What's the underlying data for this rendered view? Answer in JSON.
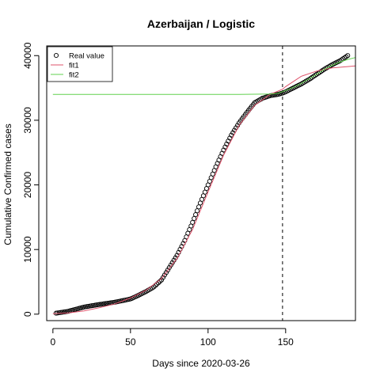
{
  "chart_data": {
    "type": "scatter",
    "title": "Azerbaijan / Logistic",
    "xlabel": "Days since 2020-03-26",
    "ylabel": "Cumulative Confirmed cases",
    "xlim": [
      -4,
      195
    ],
    "ylim": [
      -1000,
      41500
    ],
    "x_ticks": [
      0,
      50,
      100,
      150
    ],
    "y_ticks": [
      0,
      10000,
      20000,
      30000,
      40000
    ],
    "x_tick_labels": [
      "0",
      "50",
      "100",
      "150"
    ],
    "y_tick_labels": [
      "0",
      "10000",
      "20000",
      "30000",
      "40000"
    ],
    "vline_x": 148,
    "grid": false,
    "legend_position": "top-left",
    "legend": [
      "Real value",
      "fit1",
      "fit2"
    ],
    "colors": {
      "real": "#000000",
      "fit1": "#DF536B",
      "fit2": "#61D04F",
      "vline": "#000000"
    },
    "series": [
      {
        "name": "Real value",
        "style": "points",
        "x": [
          2,
          10,
          20,
          30,
          40,
          50,
          55,
          60,
          65,
          70,
          75,
          80,
          85,
          90,
          95,
          100,
          105,
          110,
          115,
          120,
          125,
          130,
          135,
          140,
          145,
          148,
          150,
          155,
          160,
          165,
          170,
          175,
          180,
          185,
          190
        ],
        "y": [
          150,
          450,
          1100,
          1500,
          1850,
          2350,
          2900,
          3500,
          4200,
          5300,
          7200,
          9100,
          11400,
          14200,
          17200,
          20000,
          22800,
          25400,
          27700,
          29600,
          31200,
          32700,
          33400,
          33800,
          34000,
          34200,
          34400,
          35000,
          35600,
          36300,
          37100,
          37900,
          38600,
          39200,
          40000
        ]
      },
      {
        "name": "fit1",
        "style": "line",
        "x": [
          0,
          10,
          20,
          30,
          40,
          50,
          60,
          70,
          80,
          90,
          100,
          110,
          120,
          130,
          140,
          148,
          150,
          160,
          170,
          180,
          190,
          195
        ],
        "y": [
          80,
          200,
          500,
          1000,
          1600,
          2500,
          3700,
          5500,
          8600,
          13100,
          18900,
          24600,
          29200,
          32300,
          34000,
          34800,
          35200,
          36800,
          37600,
          38100,
          38300,
          38400
        ]
      },
      {
        "name": "fit2",
        "style": "line",
        "x": [
          0,
          20,
          40,
          60,
          80,
          100,
          120,
          140,
          145,
          150,
          155,
          160,
          165,
          170,
          175,
          180,
          185,
          190,
          195
        ],
        "y": [
          34000,
          34000,
          34000,
          34000,
          34000,
          34000,
          34000,
          34050,
          34150,
          34600,
          35100,
          35700,
          36400,
          37100,
          37900,
          38500,
          39000,
          39400,
          39700
        ]
      }
    ]
  }
}
